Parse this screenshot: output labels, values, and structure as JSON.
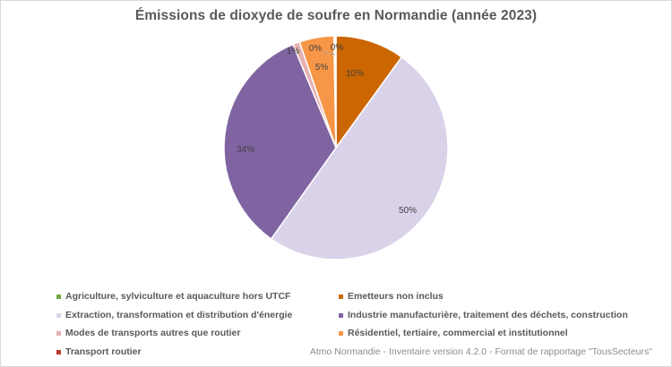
{
  "title": "Émissions de dioxyde de soufre en Normandie (année 2023)",
  "source": "Atmo Normandie - Inventaire version 4.2.0 - Format de rapportage \"TousSecteurs\"",
  "chart_data": {
    "type": "pie",
    "title": "Émissions de dioxyde de soufre en Normandie (année 2023)",
    "categories": [
      "Emetteurs non inclus",
      "Extraction, transformation et distribution d'énergie",
      "Industrie manufacturière, traitement des déchets, construction",
      "Modes de transports autres que routier",
      "Résidentiel, tertiaire, commercial et institutionnel",
      "Transport routier",
      "Agriculture, sylviculture et aquaculture hors UTCF"
    ],
    "values": [
      10,
      50,
      34,
      1,
      5,
      0.2,
      0.1
    ],
    "labels": [
      "10%",
      "50%",
      "34%",
      "1%",
      "5%",
      "0%",
      "0%"
    ],
    "colors": [
      "#cc6600",
      "#d9d2e9",
      "#8064a2",
      "#e6b0b0",
      "#f79646",
      "#c0392b",
      "#76a83f"
    ],
    "legend_position": "bottom",
    "start_angle": "top, clockwise"
  },
  "legend": {
    "items": [
      {
        "label": "Agriculture, sylviculture et aquaculture hors UTCF",
        "color": "#76a83f"
      },
      {
        "label": "Emetteurs non inclus",
        "color": "#cc6600"
      },
      {
        "label": "Extraction, transformation et distribution d'énergie",
        "color": "#d9d2e9"
      },
      {
        "label": "Industrie manufacturière, traitement des déchets, construction",
        "color": "#8064a2"
      },
      {
        "label": "Modes de transports autres que routier",
        "color": "#e6b0b0"
      },
      {
        "label": "Résidentiel, tertiaire, commercial et institutionnel",
        "color": "#f79646"
      },
      {
        "label": "Transport routier",
        "color": "#c0392b"
      }
    ]
  },
  "data_labels": {
    "emetteurs": "10%",
    "extraction": "50%",
    "industrie": "34%",
    "modes": "1%",
    "residentiel": "5%",
    "transport": "0%",
    "agriculture": "0%"
  }
}
